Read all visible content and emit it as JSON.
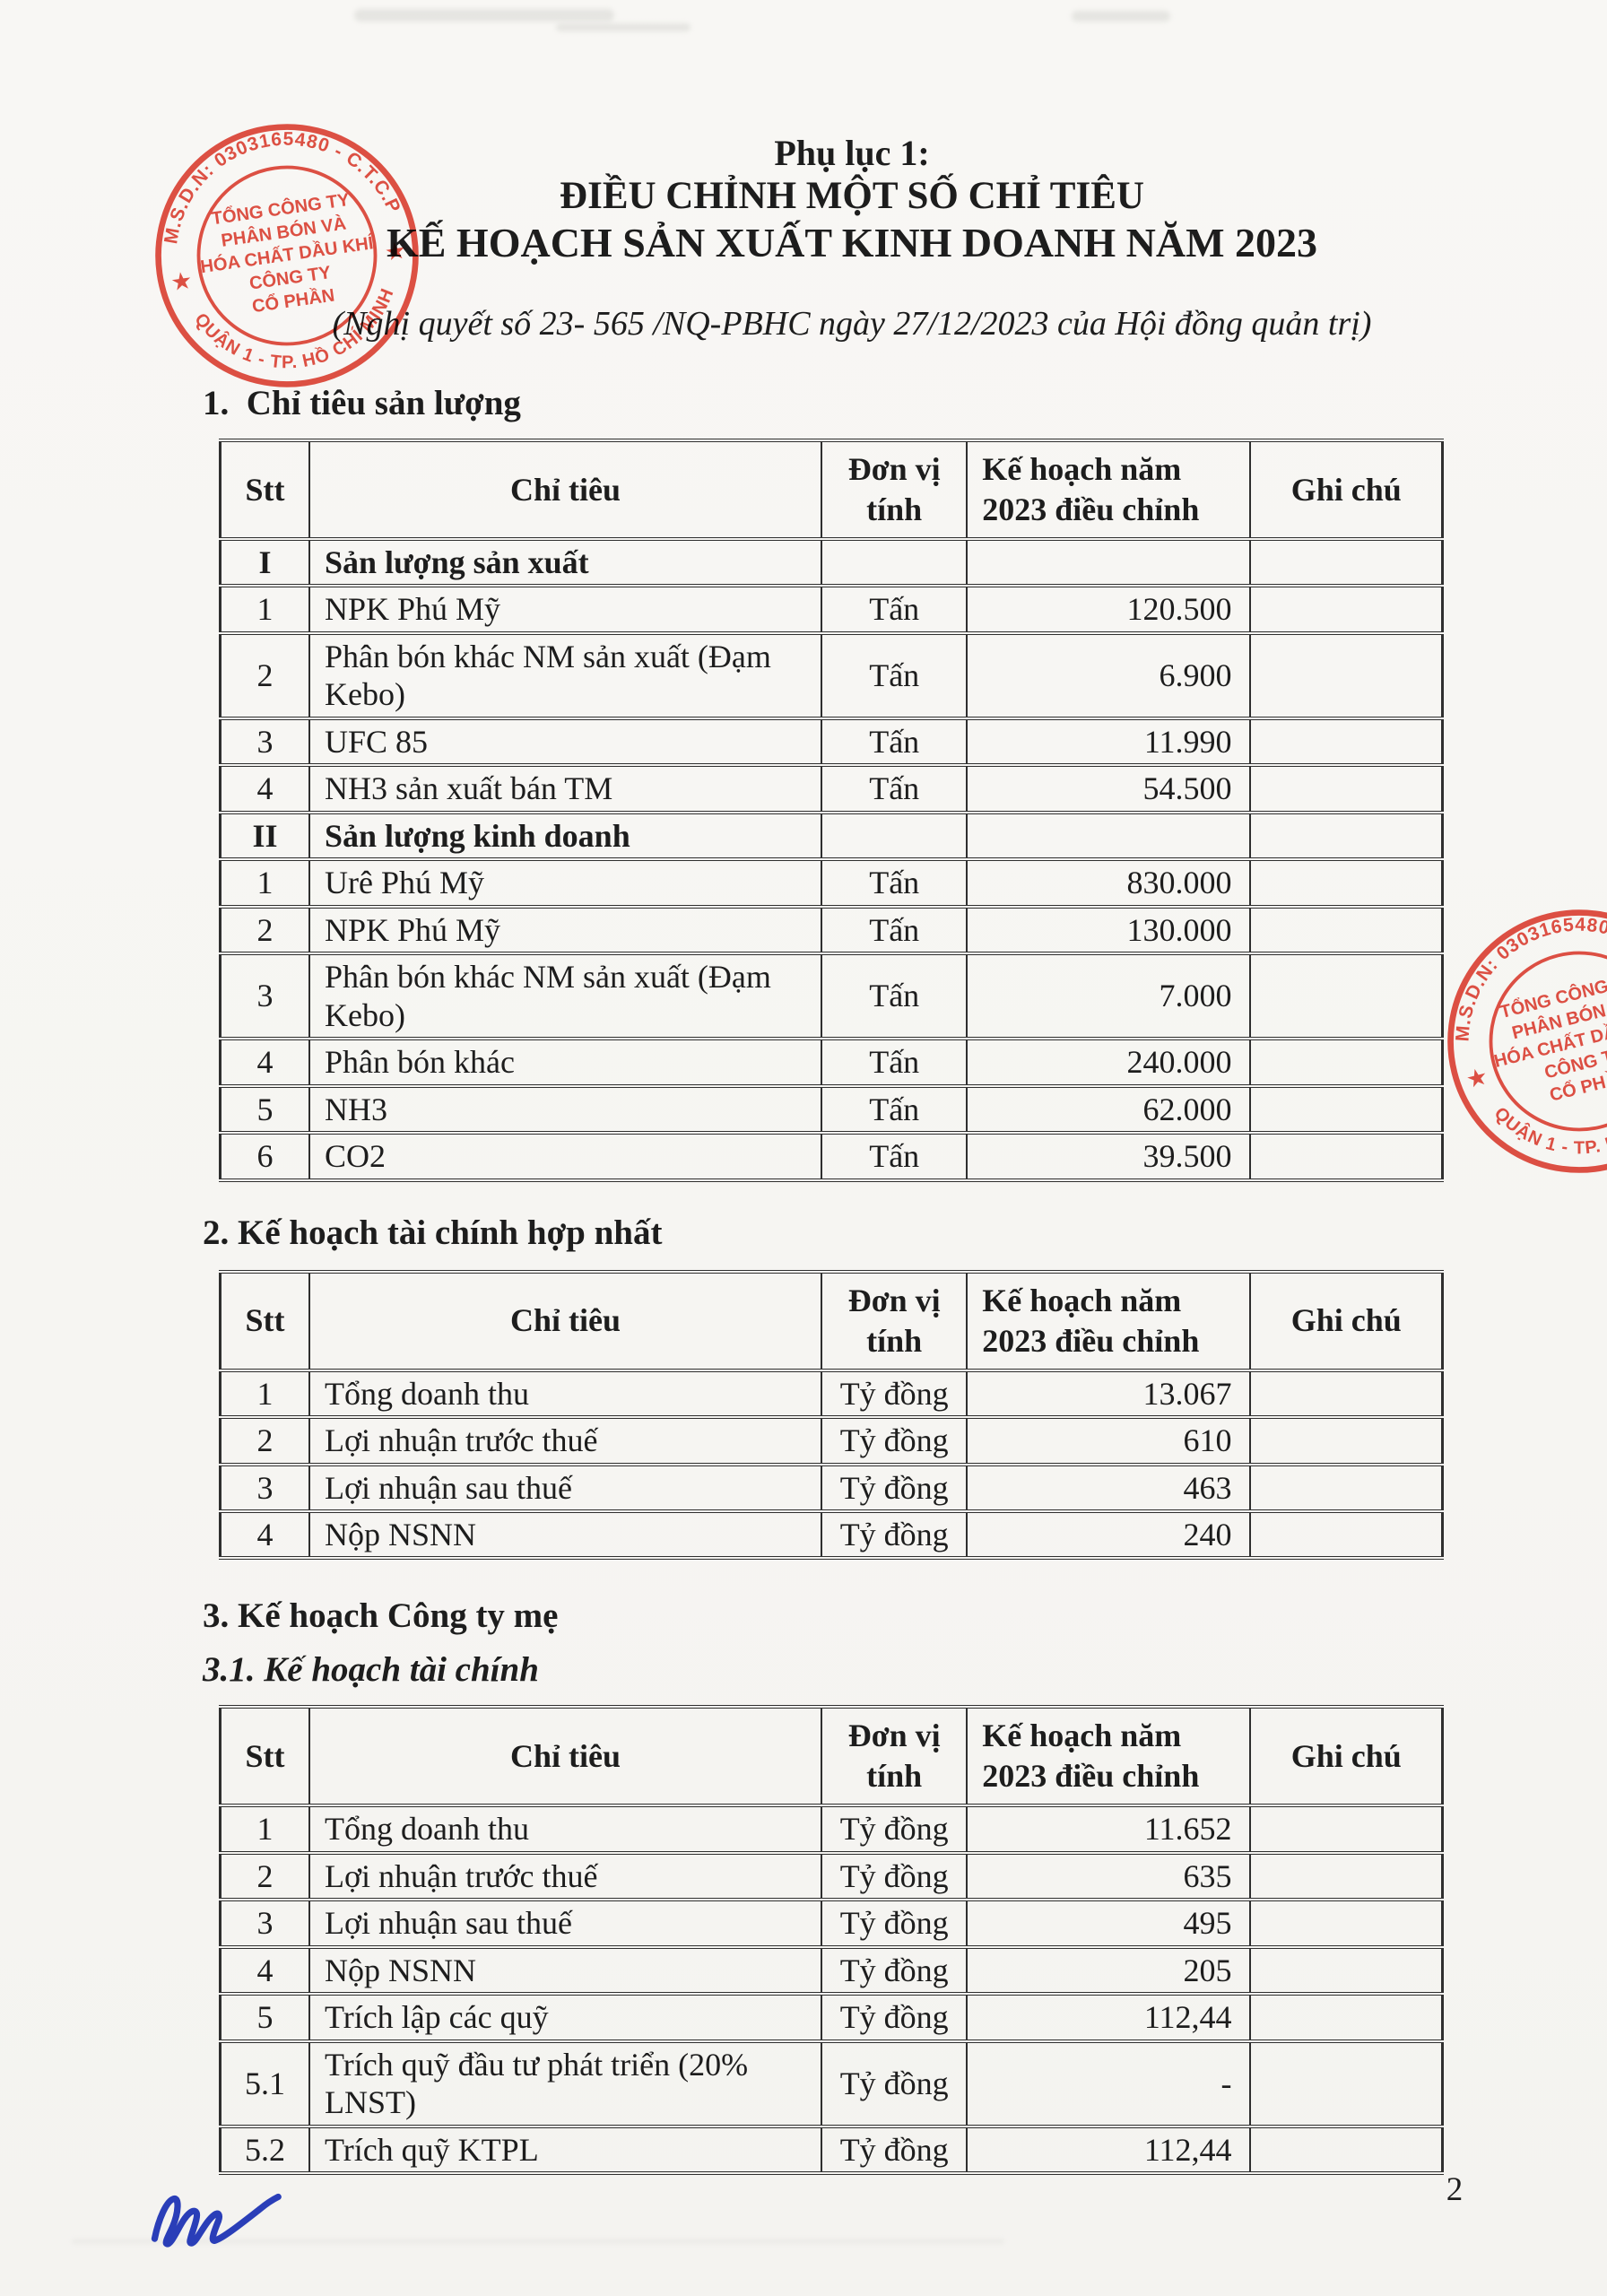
{
  "theme": {
    "paper": "#f7f6f3",
    "ink": "#2f2f2f",
    "text": "#1d1d1d",
    "stamp-red": "#e03a2c",
    "sig-blue": "#2a3eb8"
  },
  "header": {
    "appendix": "Phụ lục 1:",
    "title_line1": "ĐIỀU CHỈNH MỘT SỐ CHỈ TIÊU",
    "title_line2": "KẾ HOẠCH SẢN XUẤT KINH DOANH NĂM 2023",
    "subtitle": "(Nghị quyết số 23- 565 /NQ-PBHC ngày 27/12/2023 của Hội đồng quản trị)"
  },
  "sections": {
    "s1": "1.  Chỉ tiêu sản lượng",
    "s2": "2. Kế hoạch tài chính hợp nhất",
    "s3": "3. Kế hoạch Công ty mẹ",
    "s31": "3.1. Kế hoạch tài chính"
  },
  "tables": [
    {
      "id": "chi-tieu-san-luong",
      "columns": [
        "Stt",
        "Chỉ tiêu",
        "Đơn vị tính",
        "Kế hoạch năm 2023 điều chỉnh",
        "Ghi chú"
      ],
      "rows": [
        {
          "stt": "I",
          "label": "Sản lượng sản xuất",
          "unit": "",
          "value": "",
          "note": "",
          "section": true
        },
        {
          "stt": "1",
          "label": "NPK Phú Mỹ",
          "unit": "Tấn",
          "value": "120.500",
          "note": ""
        },
        {
          "stt": "2",
          "label": "Phân bón khác NM sản xuất (Đạm Kebo)",
          "unit": "Tấn",
          "value": "6.900",
          "note": ""
        },
        {
          "stt": "3",
          "label": "UFC 85",
          "unit": "Tấn",
          "value": "11.990",
          "note": ""
        },
        {
          "stt": "4",
          "label": "NH3 sản xuất bán TM",
          "unit": "Tấn",
          "value": "54.500",
          "note": ""
        },
        {
          "stt": "II",
          "label": "Sản lượng kinh doanh",
          "unit": "",
          "value": "",
          "note": "",
          "section": true
        },
        {
          "stt": "1",
          "label": "Urê Phú Mỹ",
          "unit": "Tấn",
          "value": "830.000",
          "note": ""
        },
        {
          "stt": "2",
          "label": "NPK Phú Mỹ",
          "unit": "Tấn",
          "value": "130.000",
          "note": ""
        },
        {
          "stt": "3",
          "label": "Phân bón khác NM sản xuất (Đạm Kebo)",
          "unit": "Tấn",
          "value": "7.000",
          "note": ""
        },
        {
          "stt": "4",
          "label": "Phân bón khác",
          "unit": "Tấn",
          "value": "240.000",
          "note": ""
        },
        {
          "stt": "5",
          "label": "NH3",
          "unit": "Tấn",
          "value": "62.000",
          "note": ""
        },
        {
          "stt": "6",
          "label": "CO2",
          "unit": "Tấn",
          "value": "39.500",
          "note": ""
        }
      ]
    },
    {
      "id": "tai-chinh-hop-nhat",
      "columns": [
        "Stt",
        "Chỉ tiêu",
        "Đơn vị tính",
        "Kế hoạch năm 2023 điều chỉnh",
        "Ghi chú"
      ],
      "rows": [
        {
          "stt": "1",
          "label": "Tổng doanh thu",
          "unit": "Tỷ đồng",
          "value": "13.067",
          "note": ""
        },
        {
          "stt": "2",
          "label": "Lợi nhuận trước thuế",
          "unit": "Tỷ đồng",
          "value": "610",
          "note": ""
        },
        {
          "stt": "3",
          "label": "Lợi nhuận sau thuế",
          "unit": "Tỷ đồng",
          "value": "463",
          "note": ""
        },
        {
          "stt": "4",
          "label": "Nộp NSNN",
          "unit": "Tỷ đồng",
          "value": "240",
          "note": ""
        }
      ]
    },
    {
      "id": "cong-ty-me-tai-chinh",
      "columns": [
        "Stt",
        "Chỉ tiêu",
        "Đơn vị tính",
        "Kế hoạch năm 2023 điều chỉnh",
        "Ghi chú"
      ],
      "rows": [
        {
          "stt": "1",
          "label": "Tổng doanh thu",
          "unit": "Tỷ đồng",
          "value": "11.652",
          "note": ""
        },
        {
          "stt": "2",
          "label": "Lợi nhuận trước thuế",
          "unit": "Tỷ đồng",
          "value": "635",
          "note": ""
        },
        {
          "stt": "3",
          "label": "Lợi nhuận sau thuế",
          "unit": "Tỷ đồng",
          "value": "495",
          "note": ""
        },
        {
          "stt": "4",
          "label": "Nộp NSNN",
          "unit": "Tỷ đồng",
          "value": "205",
          "note": ""
        },
        {
          "stt": "5",
          "label": "Trích lập các quỹ",
          "unit": "Tỷ đồng",
          "value": "112,44",
          "note": ""
        },
        {
          "stt": "5.1",
          "label": "Trích quỹ đầu tư phát triển (20% LNST)",
          "unit": "Tỷ đồng",
          "value": "-",
          "note": ""
        },
        {
          "stt": "5.2",
          "label": "Trích quỹ KTPL",
          "unit": "Tỷ đồng",
          "value": "112,44",
          "note": ""
        }
      ]
    }
  ],
  "stamp": {
    "outer_top": "M.S.D.N: 0303165480 - C.T.C.P",
    "outer_bottom": "QUẬN 1 - TP. HỒ CHÍ MINH",
    "star": "★",
    "line1": "TỔNG CÔNG TY",
    "line2": "PHÂN BÓN VÀ",
    "line3": "HÓA CHẤT DẦU KHÍ",
    "line4": "CÔNG TY",
    "line5": "CỔ PHẦN"
  },
  "footer": {
    "page_number": "2"
  }
}
